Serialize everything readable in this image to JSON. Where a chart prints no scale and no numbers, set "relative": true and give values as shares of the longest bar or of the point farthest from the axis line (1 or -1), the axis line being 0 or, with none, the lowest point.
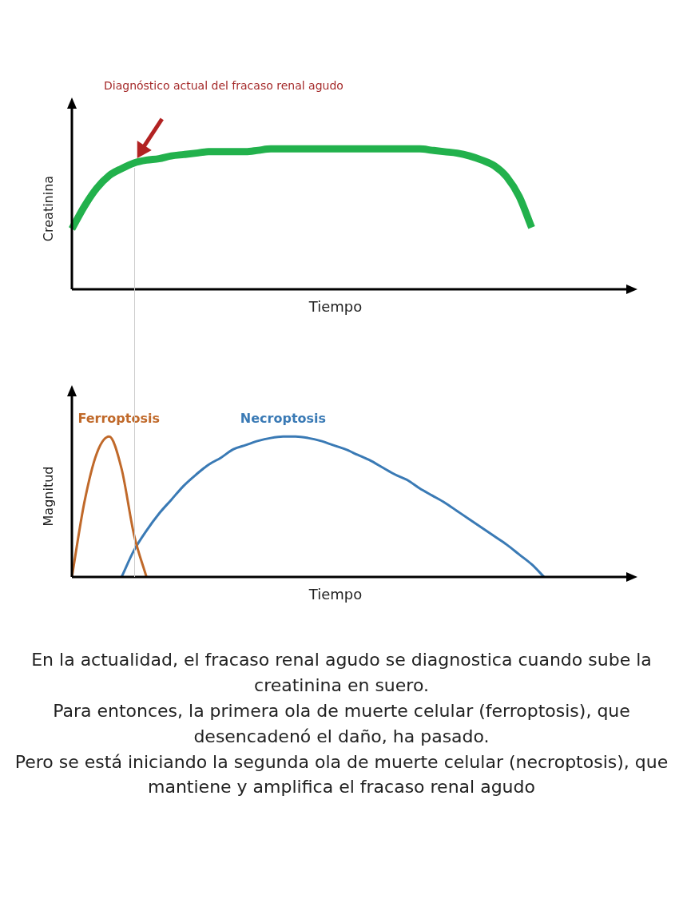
{
  "chart_data": [
    {
      "type": "line",
      "relative": true,
      "ylabel": "Creatinina",
      "xlabel": "Tiempo",
      "annotations": [
        "Diagnóstico actual del fracaso renal agudo"
      ],
      "legend": false,
      "marker": "none",
      "categories": [
        null,
        null,
        null,
        null,
        null,
        null,
        null,
        null,
        null,
        null,
        null,
        null,
        null,
        null,
        null,
        null,
        null,
        null,
        null,
        null,
        null,
        null,
        null,
        null,
        null,
        null,
        null,
        null,
        null,
        null,
        null,
        null,
        null,
        null,
        null,
        null,
        null,
        null,
        null,
        null,
        null,
        null,
        null,
        null,
        null,
        null
      ],
      "series": [
        {
          "color": "#22b14c",
          "values": [
            0.43,
            0.59,
            0.72,
            0.81,
            0.86,
            0.9,
            0.92,
            0.93,
            0.95,
            0.96,
            0.97,
            0.98,
            0.98,
            0.98,
            0.98,
            0.99,
            1,
            1,
            1,
            1,
            1,
            1,
            1,
            1,
            1,
            1,
            1,
            1,
            1,
            0.99,
            0.98,
            0.97,
            0.95,
            0.92,
            0.88,
            0.8,
            0.66,
            0.44,
            null,
            null,
            null,
            null,
            null,
            null,
            null,
            null
          ]
        }
      ]
    },
    {
      "type": "line",
      "relative": true,
      "ylabel": "Magnitud",
      "xlabel": "Tiempo",
      "legend": false,
      "marker": "none",
      "annotations": [
        "En la actualidad, el fracaso renal agudo se diagnostica cuando sube la creatinina en suero.",
        "Para entonces, la primera ola de muerte celular (ferroptosis), que desencadenó el daño, ha pasado.",
        "Pero se está iniciando la segunda ola de muerte celular (necroptosis), que mantiene y amplifica el fracaso renal agudo"
      ],
      "categories": [
        null,
        null,
        null,
        null,
        null,
        null,
        null,
        null,
        null,
        null,
        null,
        null,
        null,
        null,
        null,
        null,
        null,
        null,
        null,
        null,
        null,
        null,
        null,
        null,
        null,
        null,
        null,
        null,
        null,
        null,
        null,
        null,
        null,
        null,
        null,
        null,
        null,
        null,
        null,
        null,
        null,
        null,
        null,
        null,
        null,
        null
      ],
      "series": [
        {
          "name": "Ferroptosis",
          "color": "#c0692a",
          "values": [
            0,
            0.53,
            0.88,
            1,
            0.77,
            0.3,
            0,
            null,
            null,
            null,
            null,
            null,
            null,
            null,
            null,
            null,
            null,
            null,
            null,
            null,
            null,
            null,
            null,
            null,
            null,
            null,
            null,
            null,
            null,
            null,
            null,
            null,
            null,
            null,
            null,
            null,
            null,
            null,
            null,
            null,
            null,
            null,
            null,
            null,
            null,
            null
          ]
        },
        {
          "name": "Necroptosis",
          "color": "#3a7ab5",
          "values": [
            null,
            null,
            null,
            null,
            0,
            0.19,
            0.33,
            0.45,
            0.55,
            0.65,
            0.73,
            0.8,
            0.85,
            0.91,
            0.94,
            0.97,
            0.99,
            1,
            1,
            0.99,
            0.97,
            0.94,
            0.91,
            0.87,
            0.83,
            0.78,
            0.73,
            0.69,
            0.63,
            0.58,
            0.53,
            0.47,
            0.41,
            0.35,
            0.29,
            0.23,
            0.16,
            0.09,
            0,
            null,
            null,
            null,
            null,
            null,
            null,
            null
          ]
        }
      ]
    }
  ]
}
